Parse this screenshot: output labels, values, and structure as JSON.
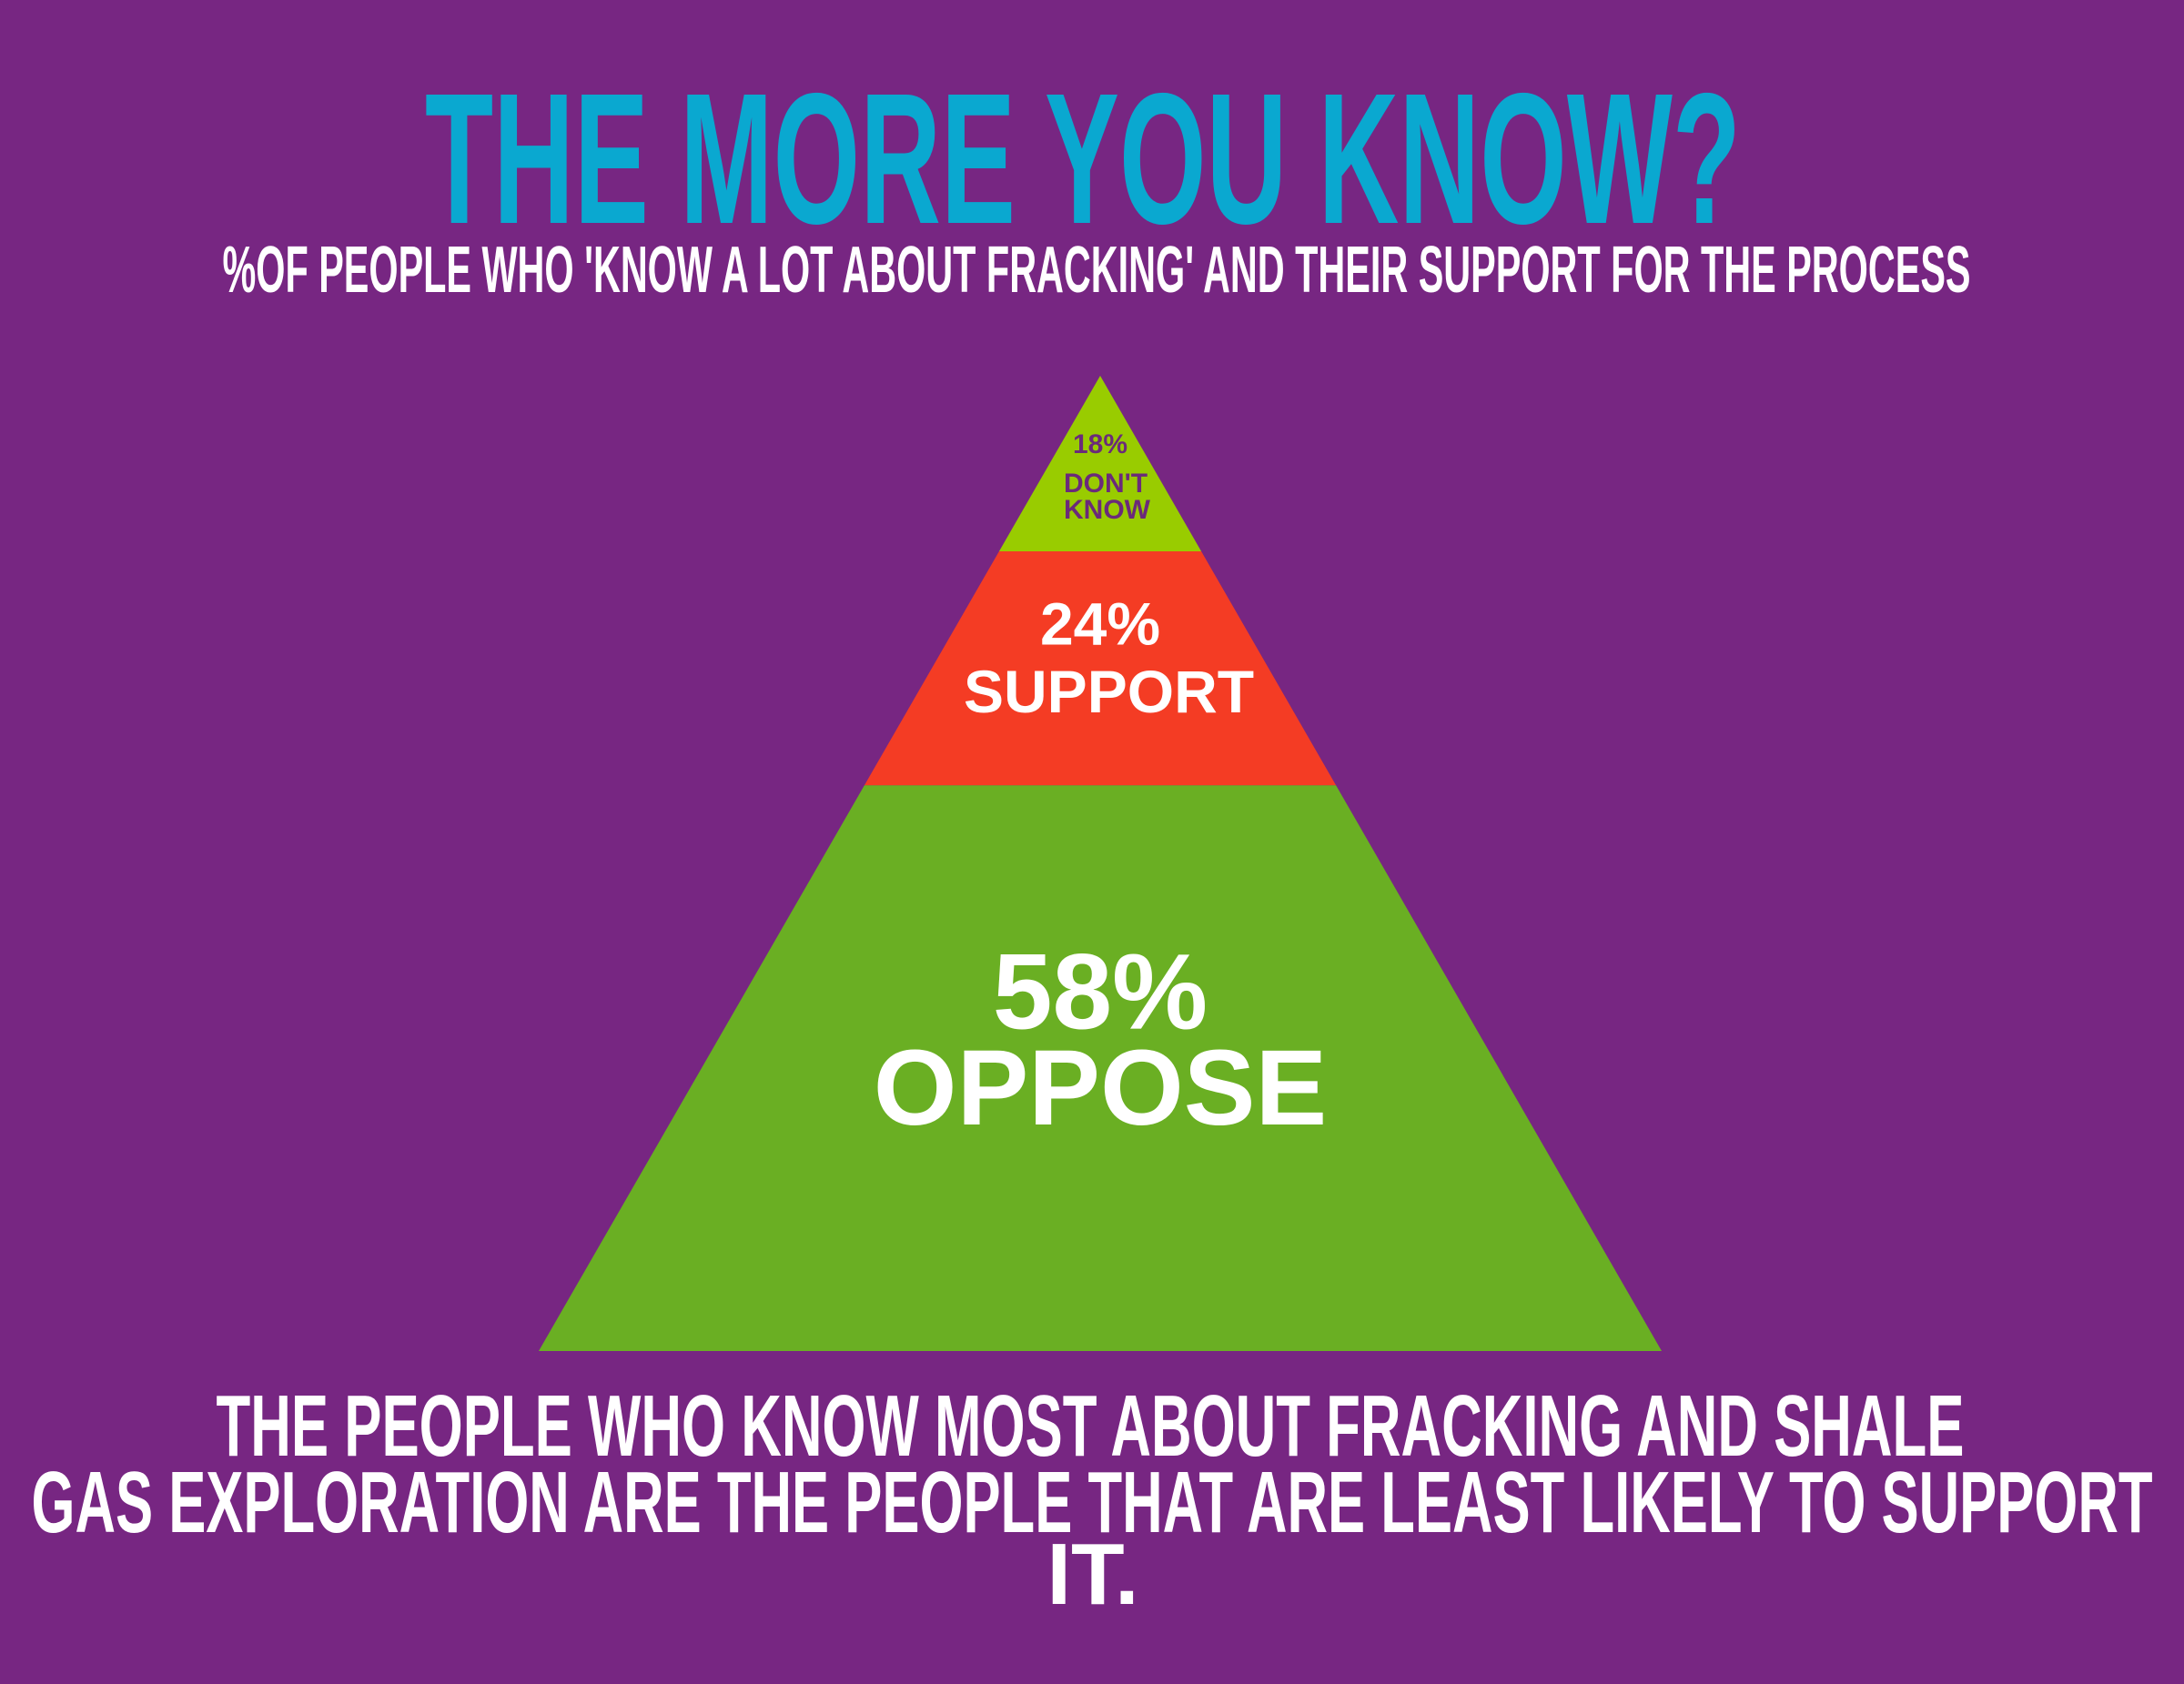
{
  "chart_data": {
    "type": "pyramid",
    "title": "THE MORE YOU KNOW?",
    "subtitle": "%OF PEOPLE WHO 'KNOW A LOT ABOUT FRACKING' AND THEIR SUPPORT FOR THE PROCESS",
    "categories": [
      "DON'T KNOW",
      "SUPPORT",
      "OPPOSE"
    ],
    "values": [
      18,
      24,
      58
    ],
    "value_labels": [
      "18%",
      "24%",
      "58%"
    ],
    "colors": [
      "#99cc00",
      "#f43c24",
      "#6aaf23"
    ],
    "label_colors": [
      "#6b2a7a",
      "#ffffff",
      "#ffffff"
    ],
    "annotations": [
      "THE PEOPLE WHO KNOW MOST ABOUT FRACKING AND SHALE",
      "GAS EXPLORATION ARE THE PEOPLE THAT ARE LEAST LIKELY TO SUPPORT",
      "IT."
    ]
  }
}
